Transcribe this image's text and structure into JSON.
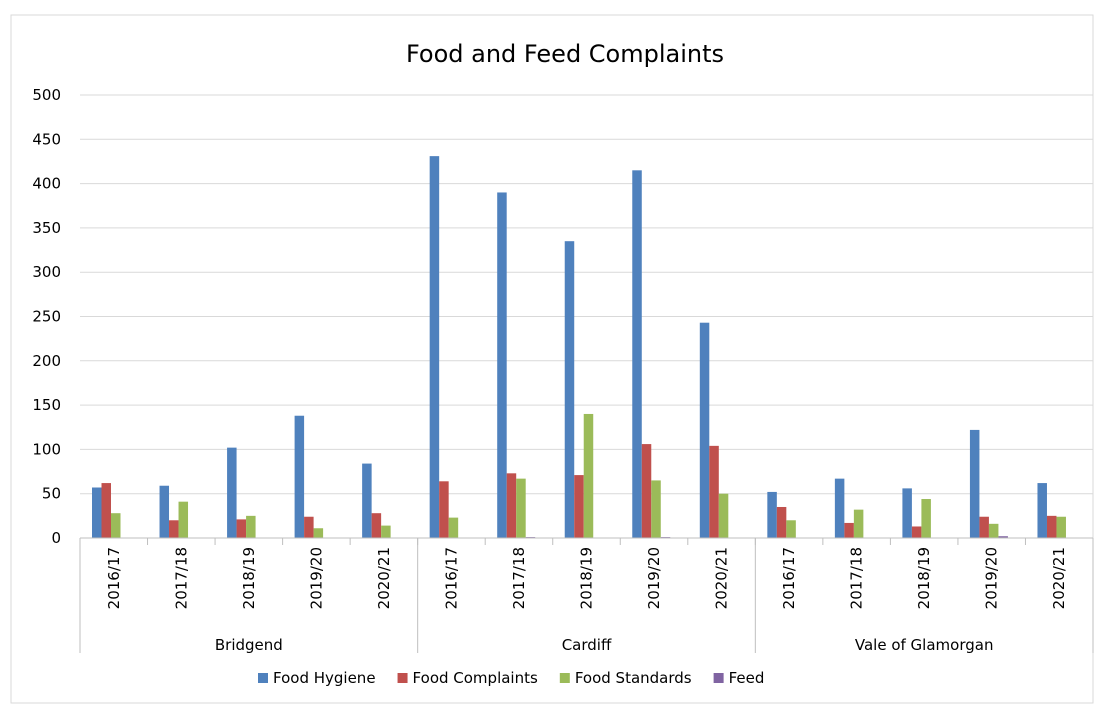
{
  "chart_data": {
    "type": "bar",
    "title": "Food and Feed Complaints",
    "xlabel": "",
    "ylabel": "",
    "ylim": [
      0,
      500
    ],
    "yticks": [
      0,
      50,
      100,
      150,
      200,
      250,
      300,
      350,
      400,
      450,
      500
    ],
    "grid": true,
    "legend_position": "bottom",
    "groups": [
      {
        "name": "Bridgend",
        "categories": [
          "2016/17",
          "2017/18",
          "2018/19",
          "2019/20",
          "2020/21"
        ]
      },
      {
        "name": "Cardiff",
        "categories": [
          "2016/17",
          "2017/18",
          "2018/19",
          "2019/20",
          "2020/21"
        ]
      },
      {
        "name": "Vale of Glamorgan",
        "categories": [
          "2016/17",
          "2017/18",
          "2018/19",
          "2019/20",
          "2020/21"
        ]
      }
    ],
    "series": [
      {
        "name": "Food Hygiene",
        "color": "#4f81bd",
        "values": [
          57,
          59,
          102,
          138,
          84,
          431,
          390,
          335,
          415,
          243,
          52,
          67,
          56,
          122,
          62
        ]
      },
      {
        "name": "Food Complaints",
        "color": "#c0504d",
        "values": [
          62,
          20,
          21,
          24,
          28,
          64,
          73,
          71,
          106,
          104,
          35,
          17,
          13,
          24,
          25
        ]
      },
      {
        "name": "Food Standards",
        "color": "#9bbb59",
        "values": [
          28,
          41,
          25,
          11,
          14,
          23,
          67,
          140,
          65,
          50,
          20,
          32,
          44,
          16,
          24
        ]
      },
      {
        "name": "Feed",
        "color": "#8064a2",
        "values": [
          0,
          0,
          0,
          0,
          0,
          0,
          1,
          0,
          1,
          0,
          0,
          0,
          0,
          2,
          0
        ]
      }
    ]
  }
}
